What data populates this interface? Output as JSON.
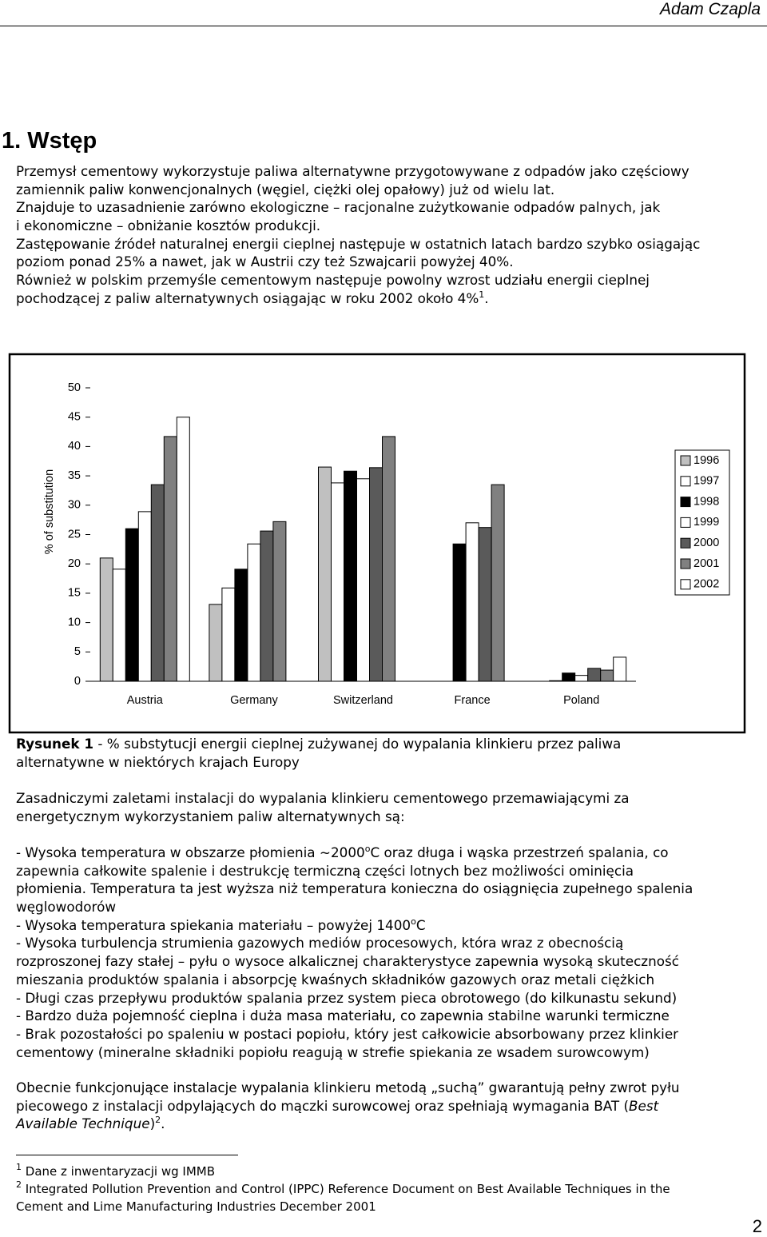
{
  "header": {
    "author": "Adam Czapla"
  },
  "section": {
    "title": "1. Wstęp"
  },
  "intro": [
    "Przemysł cementowy wykorzystuje paliwa alternatywne przygotowywane z odpadów jako częściowy",
    "zamiennik paliw konwencjonalnych (węgiel, ciężki olej opałowy) już od wielu lat.",
    "Znajduje to uzasadnienie zarówno ekologiczne – racjonalne zużytkowanie odpadów palnych, jak",
    "i ekonomiczne – obniżanie kosztów produkcji.",
    "Zastępowanie źródeł naturalnej energii cieplnej następuje w ostatnich latach bardzo szybko osiągając",
    "poziom ponad 25% a nawet, jak w Austrii czy też Szwajcarii powyżej 40%.",
    "Również w polskim przemyśle cementowym następuje powolny wzrost udziału energii cieplnej",
    [
      "pochodzącej z paliw alternatywnych osiągając w roku 2002 około 4%",
      {
        "sup": "1"
      },
      "."
    ]
  ],
  "chart_data": {
    "type": "bar",
    "y_label": "% of substitution",
    "categories": [
      "Austria",
      "Germany",
      "Switzerland",
      "France",
      "Poland"
    ],
    "series": [
      {
        "name": "1996",
        "color": "#c0c0c0",
        "values": [
          21.0,
          13.1,
          36.5,
          null,
          null
        ]
      },
      {
        "name": "1997",
        "color": "#ffffff",
        "values": [
          19.1,
          15.9,
          33.8,
          null,
          0.1
        ]
      },
      {
        "name": "1998",
        "color": "#000000",
        "values": [
          26.0,
          19.1,
          35.8,
          23.4,
          1.4
        ]
      },
      {
        "name": "1999",
        "color": "#ffffff",
        "values": [
          28.9,
          23.4,
          34.5,
          27.0,
          1.0
        ]
      },
      {
        "name": "2000",
        "color": "#5a5a5a",
        "values": [
          33.5,
          25.6,
          36.4,
          26.2,
          2.2
        ]
      },
      {
        "name": "2001",
        "color": "#808080",
        "values": [
          41.7,
          27.2,
          41.7,
          33.5,
          1.9
        ]
      },
      {
        "name": "2002",
        "color": "#ffffff",
        "values": [
          45.0,
          null,
          null,
          null,
          4.1
        ]
      }
    ],
    "ylim": [
      0,
      50
    ],
    "yticks": [
      0,
      5,
      10,
      15,
      20,
      25,
      30,
      35,
      40,
      45,
      50
    ],
    "grid": false,
    "legend": "right"
  },
  "caption": [
    [
      {
        "b": "Rysunek 1"
      },
      " - % substytucji energii cieplnej zużywanej do wypalania klinkieru przez paliwa"
    ],
    "alternatywne w niektórych krajach Europy"
  ],
  "paragraph": [
    "Zasadniczymi zaletami instalacji do wypalania klinkieru cementowego przemawiającymi za",
    "energetycznym wykorzystaniem paliw alternatywnych są:"
  ],
  "bullets": [
    [
      "- Wysoka temperatura w obszarze płomienia ~2000",
      {
        "sup": "o"
      },
      "C oraz długa i wąska przestrzeń spalania, co"
    ],
    "zapewnia całkowite spalenie i destrukcję termiczną części lotnych bez możliwości ominięcia",
    "płomienia. Temperatura ta jest wyższa niż temperatura konieczna do osiągnięcia zupełnego spalenia",
    "węglowodorów",
    [
      "- Wysoka temperatura spiekania materiału – powyżej 1400",
      {
        "sup": "o"
      },
      "C"
    ],
    "- Wysoka turbulencja strumienia gazowych mediów procesowych, która wraz z obecnością",
    "rozproszonej fazy stałej – pyłu o wysoce alkalicznej charakterystyce zapewnia wysoką skuteczność",
    "mieszania produktów spalania i absorpcję kwaśnych składników gazowych oraz metali ciężkich",
    "- Długi czas przepływu produktów spalania przez system pieca obrotowego (do kilkunastu sekund)",
    "- Bardzo duża pojemność cieplna i duża masa materiału, co zapewnia stabilne warunki termiczne",
    "- Brak pozostałości po spaleniu w postaci popiołu, który jest całkowicie absorbowany przez klinkier",
    "cementowy (mineralne składniki popiołu reagują w strefie spiekania ze wsadem surowcowym)"
  ],
  "closing": [
    "Obecnie funkcjonujące instalacje wypalania klinkieru metodą „suchą” gwarantują pełny zwrot pyłu",
    [
      "piecowego z instalacji odpylających do mączki surowcowej oraz spełniają wymagania BAT (",
      {
        "em": "Best"
      }
    ],
    [
      {
        "em": "Available Technique"
      },
      ")",
      {
        "sup": "2"
      },
      "."
    ]
  ],
  "footnotes": [
    [
      {
        "sup": "1"
      },
      " Dane z inwentaryzacji wg IMMB"
    ],
    [
      {
        "sup": "2"
      },
      " Integrated Pollution Prevention and Control (IPPC) Reference Document on Best Available Techniques in the"
    ],
    "Cement and Lime Manufacturing Industries December 2001"
  ],
  "page_number": "2"
}
